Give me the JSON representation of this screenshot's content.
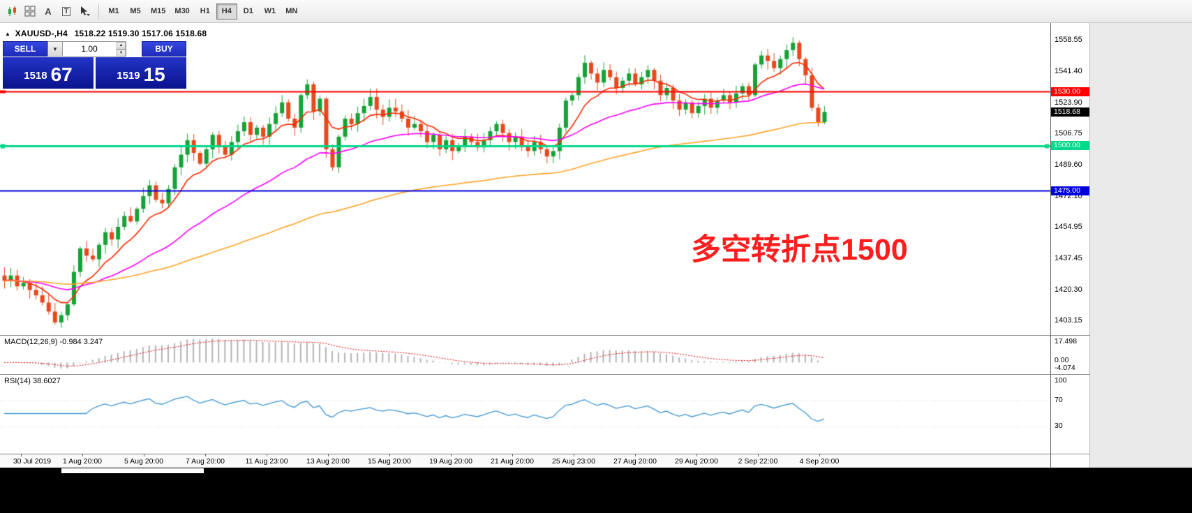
{
  "toolbar": {
    "timeframes": [
      {
        "label": "M1",
        "active": false
      },
      {
        "label": "M5",
        "active": false
      },
      {
        "label": "M15",
        "active": false
      },
      {
        "label": "M30",
        "active": false
      },
      {
        "label": "H1",
        "active": false
      },
      {
        "label": "H4",
        "active": true
      },
      {
        "label": "D1",
        "active": false
      },
      {
        "label": "W1",
        "active": false
      },
      {
        "label": "MN",
        "active": false
      }
    ],
    "text_tool_glyph": "A",
    "textbox_tool_glyph": "T"
  },
  "chart": {
    "collapse_glyph": "▲",
    "title": "XAUUSD-,H4",
    "ohlc_line": "1518.22 1519.30 1517.06 1518.68",
    "annotation": "多空转折点1500"
  },
  "trade_panel": {
    "sell_label": "SELL",
    "buy_label": "BUY",
    "volume": "1.00",
    "bid": {
      "big": "1518",
      "pips": "67"
    },
    "ask": {
      "big": "1519",
      "pips": "15"
    }
  },
  "price_axis": {
    "labels": [
      1558.55,
      1541.4,
      1523.9,
      1506.75,
      1489.6,
      1472.1,
      1454.95,
      1437.45,
      1420.3,
      1403.15
    ]
  },
  "levels": [
    {
      "name": "resistance-line",
      "price": 1530.0,
      "label": "1530.00",
      "color": "#ff0000",
      "text": "#ffffff"
    },
    {
      "name": "last-price",
      "price": 1518.68,
      "label": "1518.68",
      "color": "#000000",
      "text": "#ffffff"
    },
    {
      "name": "pivot-line",
      "price": 1500.0,
      "label": "1500.00",
      "color": "#00d88a",
      "text": "#ffffff"
    },
    {
      "name": "support-line",
      "price": 1475.0,
      "label": "1475.00",
      "color": "#0000dd",
      "text": "#ffffff"
    }
  ],
  "macd": {
    "label": "MACD(12,26,9)",
    "values": "-0.984 3.247",
    "axis_labels": [
      "17.498",
      "0.00",
      "-4.074"
    ]
  },
  "rsi": {
    "label": "RSI(14)",
    "value": "38.6027",
    "axis_labels": [
      100,
      70,
      30
    ]
  },
  "time_axis": {
    "labels": [
      "30 Jul 2019",
      "1 Aug 20:00",
      "5 Aug 20:00",
      "7 Aug 20:00",
      "11 Aug 23:00",
      "13 Aug 20:00",
      "15 Aug 20:00",
      "19 Aug 20:00",
      "21 Aug 20:00",
      "25 Aug 23:00",
      "27 Aug 20:00",
      "29 Aug 20:00",
      "2 Sep 22:00",
      "4 Sep 20:00"
    ]
  },
  "chart_data": {
    "type": "candlestick",
    "symbol": "XAUUSD-",
    "timeframe": "H4",
    "title": "XAUUSD-,H4",
    "ylim": [
      1395,
      1568
    ],
    "price_axis_range_shown": [
      1403.15,
      1558.55
    ],
    "last_candle": {
      "open": 1518.22,
      "high": 1519.3,
      "low": 1517.06,
      "close": 1518.68
    },
    "closes": [
      1425,
      1428,
      1422,
      1424,
      1420,
      1417,
      1413,
      1408,
      1402,
      1406,
      1412,
      1430,
      1443,
      1439,
      1437,
      1445,
      1452,
      1448,
      1455,
      1461,
      1458,
      1465,
      1472,
      1478,
      1470,
      1468,
      1476,
      1488,
      1495,
      1503,
      1496,
      1490,
      1498,
      1506,
      1500,
      1495,
      1502,
      1508,
      1513,
      1506,
      1510,
      1505,
      1512,
      1518,
      1524,
      1515,
      1510,
      1528,
      1534,
      1519,
      1526,
      1498,
      1488,
      1505,
      1515,
      1512,
      1518,
      1522,
      1527,
      1520,
      1516,
      1521,
      1519,
      1515,
      1510,
      1512,
      1508,
      1502,
      1506,
      1498,
      1503,
      1497,
      1500,
      1505,
      1502,
      1499,
      1503,
      1508,
      1512,
      1507,
      1502,
      1505,
      1500,
      1497,
      1502,
      1498,
      1494,
      1497,
      1510,
      1525,
      1528,
      1538,
      1546,
      1540,
      1535,
      1542,
      1538,
      1532,
      1536,
      1540,
      1534,
      1538,
      1542,
      1536,
      1528,
      1532,
      1525,
      1520,
      1524,
      1518,
      1522,
      1526,
      1521,
      1525,
      1528,
      1524,
      1529,
      1533,
      1528,
      1545,
      1550,
      1547,
      1543,
      1548,
      1553,
      1557,
      1548,
      1539,
      1521,
      1513,
      1518.68
    ],
    "horizontal_lines": [
      {
        "price": 1530,
        "color": "#ff0000",
        "width": 2
      },
      {
        "price": 1500,
        "color": "#00d88a",
        "width": 3
      },
      {
        "price": 1475,
        "color": "#0000dd",
        "width": 2
      }
    ],
    "moving_averages": [
      {
        "name": "fast-ma",
        "color": "#ff2a00",
        "period": 9
      },
      {
        "name": "mid-ma",
        "color": "#ff00ff",
        "period": 34
      },
      {
        "name": "slow-ma",
        "color": "#ffa428",
        "period": 100
      }
    ],
    "indicators": [
      {
        "name": "MACD",
        "params": [
          12,
          26,
          9
        ],
        "current": [
          -0.984,
          3.247
        ],
        "axis": [
          17.498,
          0.0,
          -4.074
        ]
      },
      {
        "name": "RSI",
        "params": [
          14
        ],
        "current": 38.6027,
        "levels": [
          70,
          30
        ],
        "axis": [
          100,
          70,
          30
        ]
      }
    ],
    "candle_up_color": "#15a237",
    "candle_down_color": "#e8481c",
    "annotation": {
      "text": "多空转折点1500",
      "color": "#ff1e1e"
    }
  }
}
